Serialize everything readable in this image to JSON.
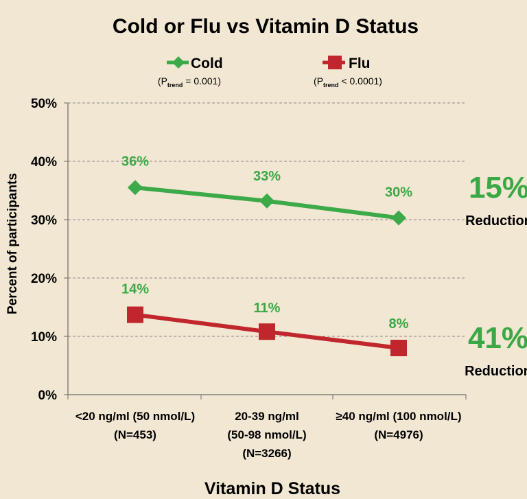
{
  "chart_data": {
    "type": "line",
    "title": "Cold or Flu vs Vitamin D Status",
    "xlabel": "Vitamin D Status",
    "ylabel": "Percent of participants",
    "ylim": [
      0,
      50
    ],
    "yticks": [
      0,
      10,
      20,
      30,
      40,
      50
    ],
    "ytick_labels": [
      "0%",
      "10%",
      "20%",
      "30%",
      "40%",
      "50%"
    ],
    "grid": true,
    "categories": [
      [
        "<20 ng/ml (50 nmol/L)",
        "(N=453)"
      ],
      [
        "20-39 ng/ml",
        "(50-98 nmol/L)",
        "(N=3266)"
      ],
      [
        "≥40 ng/ml (100 nmol/L)",
        "(N=4976)"
      ]
    ],
    "series": [
      {
        "name": "Cold",
        "marker": "diamond",
        "color": "#3daa49",
        "values": [
          35.5,
          33.2,
          30.3
        ],
        "labels": [
          "36%",
          "33%",
          "30%"
        ],
        "p_trend": {
          "open": "(P",
          "sub": "trend",
          "rest": " = 0.001)"
        },
        "reduction_value": "15%",
        "reduction_label": "Reduction"
      },
      {
        "name": "Flu",
        "marker": "square",
        "color": "#c1262d",
        "values": [
          13.7,
          10.8,
          8.0
        ],
        "labels": [
          "14%",
          "11%",
          "8%"
        ],
        "p_trend": {
          "open": "(P",
          "sub": "trend",
          "rest": " < 0.0001)"
        },
        "reduction_value": "41%",
        "reduction_label": "Reduction"
      }
    ],
    "label_color": "#3aa845"
  }
}
